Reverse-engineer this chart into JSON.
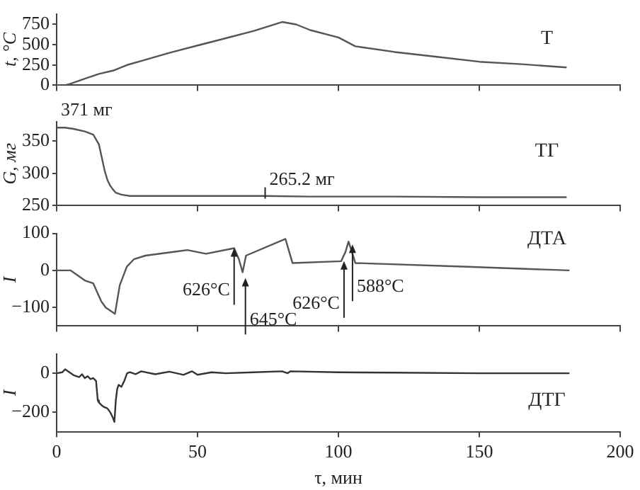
{
  "chart_data": [
    {
      "type": "line",
      "ylabel": "t, °C",
      "xlim": [
        0,
        200
      ],
      "xticks": [
        0,
        50,
        100,
        150,
        200
      ],
      "ylim": [
        0,
        880
      ],
      "yticks": [
        0,
        250,
        500,
        750
      ],
      "tick_labels": "y",
      "series": [
        {
          "name": "T",
          "color": "#555555",
          "x": [
            0,
            3,
            5,
            10,
            15,
            20,
            25,
            30,
            40,
            50,
            60,
            70,
            80,
            85,
            90,
            100,
            106,
            120,
            135,
            150,
            165,
            181
          ],
          "values": [
            0,
            0,
            20,
            80,
            140,
            180,
            250,
            300,
            400,
            490,
            580,
            670,
            780,
            750,
            680,
            590,
            480,
            410,
            350,
            290,
            260,
            220
          ]
        }
      ]
    },
    {
      "type": "line",
      "ylabel": "G, мг",
      "xlim": [
        0,
        200
      ],
      "xticks": [
        0,
        50,
        100,
        150,
        200
      ],
      "ylim": [
        250,
        380
      ],
      "yticks": [
        250,
        300,
        350
      ],
      "tick_labels": "y",
      "annotations": [
        {
          "text": "371 мг",
          "x": 0,
          "y": 371
        },
        {
          "text": "265.2 мг",
          "x": 74,
          "y": 265.2
        }
      ],
      "series": [
        {
          "name": "ТГ",
          "color": "#555555",
          "x": [
            0,
            3,
            6,
            10,
            13,
            15,
            16,
            17,
            18,
            19,
            20,
            21,
            23,
            26,
            40,
            60,
            74,
            90,
            120,
            150,
            181
          ],
          "values": [
            371,
            371,
            369,
            365,
            360,
            345,
            325,
            305,
            290,
            281,
            275,
            270,
            267,
            265,
            265,
            265,
            265,
            264,
            264,
            263,
            263
          ]
        }
      ]
    },
    {
      "type": "line",
      "ylabel": "I",
      "xlim": [
        0,
        200
      ],
      "xticks": [
        0,
        50,
        100,
        150,
        200
      ],
      "ylim": [
        -150,
        100
      ],
      "yticks": [
        -100,
        0,
        100
      ],
      "tick_labels": "y",
      "annotations": [
        {
          "text": "626°C",
          "x": 63,
          "y": 60
        },
        {
          "text": "645°C",
          "x": 67,
          "y": -20
        },
        {
          "text": "626°C",
          "x": 102,
          "y": 25
        },
        {
          "text": "588°C",
          "x": 105,
          "y": 70
        }
      ],
      "series": [
        {
          "name": "ДТА",
          "color": "#555555",
          "x": [
            0,
            5,
            10,
            13,
            15.8,
            17.4,
            20.7,
            22.4,
            24.9,
            27.4,
            31.5,
            46.4,
            53,
            63,
            64.7,
            66,
            67.2,
            81.2,
            83.7,
            101,
            102.5,
            103.6,
            104.8,
            106,
            146,
            182
          ],
          "values": [
            0,
            0,
            -27,
            -35,
            -83,
            -100,
            -117,
            -40,
            10,
            30,
            40,
            55,
            45,
            60,
            30,
            -5,
            40,
            85,
            20,
            25,
            50,
            78,
            50,
            20,
            10,
            0
          ]
        }
      ]
    },
    {
      "type": "line",
      "ylabel": "I",
      "xlabel": "τ, мин",
      "xlim": [
        0,
        200
      ],
      "xticks": [
        0,
        50,
        100,
        150,
        200
      ],
      "ylim": [
        -300,
        100
      ],
      "yticks": [
        -200,
        0
      ],
      "series": [
        {
          "name": "ДТГ",
          "color": "#333333",
          "x": [
            0,
            2,
            3,
            4,
            5,
            6,
            8,
            9,
            10,
            11,
            12,
            13,
            14,
            14.6,
            15,
            16,
            17,
            18,
            19,
            20,
            20.5,
            21,
            21.5,
            22,
            23,
            24,
            25,
            26,
            28,
            30,
            35,
            40,
            45,
            48,
            50,
            55,
            60,
            70,
            80,
            82,
            83,
            100,
            120,
            150,
            182
          ],
          "values": [
            0,
            5,
            20,
            10,
            0,
            -10,
            -20,
            -5,
            -25,
            -15,
            -30,
            -25,
            -40,
            -139,
            -150,
            -165,
            -175,
            -180,
            -200,
            -230,
            -250,
            -140,
            -80,
            -60,
            -70,
            -40,
            0,
            5,
            -5,
            10,
            -5,
            8,
            -8,
            10,
            -8,
            5,
            0,
            5,
            10,
            0,
            10,
            5,
            3,
            0,
            0
          ]
        }
      ]
    }
  ]
}
